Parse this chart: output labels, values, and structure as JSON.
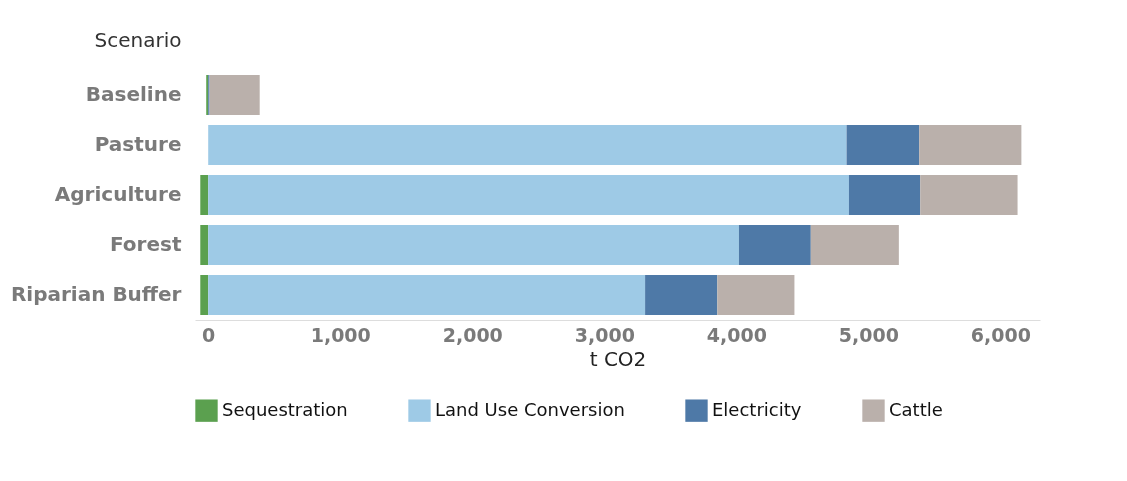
{
  "chart_data": {
    "type": "bar",
    "orientation": "horizontal",
    "stacked": true,
    "ylabel": "Scenario",
    "xlabel": "t CO2",
    "categories": [
      "Baseline",
      "Pasture",
      "Agriculture",
      "Forest",
      "Riparian Buffer"
    ],
    "series": [
      {
        "name": "Sequestration",
        "color": "#5ba04f",
        "values": [
          -15,
          null,
          -60,
          -60,
          -60
        ]
      },
      {
        "name": "Land Use Conversion",
        "color": "#9ecae6",
        "values": [
          0,
          4835,
          4853,
          4020,
          3309
        ]
      },
      {
        "name": "Electricity",
        "color": "#4e79a7",
        "values": [
          10,
          550,
          540,
          544,
          547
        ]
      },
      {
        "name": "Cattle",
        "color": "#bab0ab",
        "values": [
          380,
          774,
          737,
          667,
          584
        ]
      }
    ],
    "xlim": [
      -100,
      6300
    ],
    "xticks": [
      0,
      {
        "value": 1000,
        "label": "1,000"
      },
      {
        "value": 2000,
        "label": "2,000"
      },
      {
        "value": 3000,
        "label": "3,000"
      },
      {
        "value": 4000,
        "label": "4,000"
      },
      {
        "value": 5000,
        "label": "5,000"
      },
      {
        "value": 6000,
        "label": "6,000"
      }
    ],
    "grid": false,
    "legend": "bottom"
  }
}
